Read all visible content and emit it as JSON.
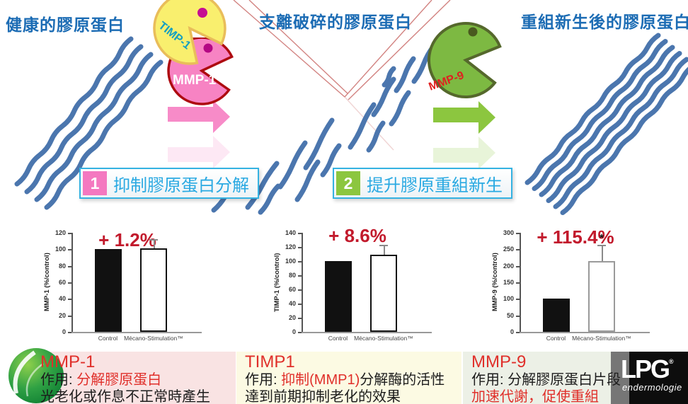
{
  "stages": [
    {
      "title": "健康的膠原蛋白"
    },
    {
      "title": "支離破碎的膠原蛋白"
    },
    {
      "title": "重組新生後的膠原蛋白"
    }
  ],
  "actors": {
    "timp1": "TIMP-1",
    "mmp1": "MMP-1",
    "mmp9": "MMP-9"
  },
  "steps": [
    {
      "number": "1",
      "label": "抑制膠原蛋白分解"
    },
    {
      "number": "2",
      "label": "提升膠原重組新生"
    }
  ],
  "chart_data": [
    {
      "type": "bar",
      "title": "+ 1.2%",
      "ylabel": "MMP-1 (%/control)",
      "categories": [
        "Control",
        "Mécano-Stimulation™"
      ],
      "values": [
        100,
        101
      ],
      "errors_up": [
        0,
        11
      ],
      "ylim": [
        0,
        120
      ],
      "yticks": [
        0,
        20,
        40,
        60,
        80,
        100,
        120
      ],
      "bar_colors": [
        "#111111",
        "#ffffff"
      ],
      "bar_borders": [
        "#111111",
        "#111111"
      ],
      "significance": ""
    },
    {
      "type": "bar",
      "title": "+ 8.6%",
      "ylabel": "TIMP-1 (%/control)",
      "categories": [
        "Control",
        "Mécano-Stimulation™"
      ],
      "values": [
        100,
        109
      ],
      "errors_up": [
        0,
        14
      ],
      "ylim": [
        0,
        140
      ],
      "yticks": [
        0,
        20,
        40,
        60,
        80,
        100,
        120,
        140
      ],
      "bar_colors": [
        "#111111",
        "#ffffff"
      ],
      "bar_borders": [
        "#111111",
        "#111111"
      ],
      "significance": ""
    },
    {
      "type": "bar",
      "title": "+ 115.4%",
      "ylabel": "MMP-9 (%/control)",
      "categories": [
        "Control",
        "Mécano-Stimulation™"
      ],
      "values": [
        100,
        215
      ],
      "errors_up": [
        0,
        48
      ],
      "ylim": [
        0,
        300
      ],
      "yticks": [
        0,
        50,
        100,
        150,
        200,
        250,
        300
      ],
      "bar_colors": [
        "#111111",
        "#ffffff"
      ],
      "bar_borders": [
        "#111111",
        "#9a9a9a"
      ],
      "significance": "*"
    }
  ],
  "info_boxes": [
    {
      "title": "MMP-1",
      "l1a": "作用: ",
      "l1b": "分解膠原蛋白",
      "l1c": "",
      "l2": "光老化或作息不正常時產生"
    },
    {
      "title": "TIMP1",
      "l1a": "作用: ",
      "l1b": "抑制(MMP1)",
      "l1c": "分解酶的活性",
      "l2": "達到前期抑制老化的效果"
    },
    {
      "title": "MMP-9",
      "l1a": "作用: ",
      "l1b": "",
      "l1c": "分解膠原蛋白片段",
      "l2": "加速代謝，促使重組"
    }
  ],
  "logo": {
    "brand": "LPG",
    "reg": "®",
    "sub": "endermologie"
  },
  "colors": {
    "title_blue": "#1c6cb4",
    "label_cyan": "#29a9e2",
    "badge1_pink": "#f478c0",
    "badge2_green": "#8cc63f",
    "highlight_red": "#e02f2a",
    "chart_title_red": "#c21a2c",
    "fiber_blue": "#4b76ae",
    "arrow_pink": "#f78bc8",
    "arrow_green": "#8cc63f",
    "pacman_yellow": "#f9ef6e",
    "pacman_pink": "#f783c3",
    "pacman_green": "#7db942"
  }
}
